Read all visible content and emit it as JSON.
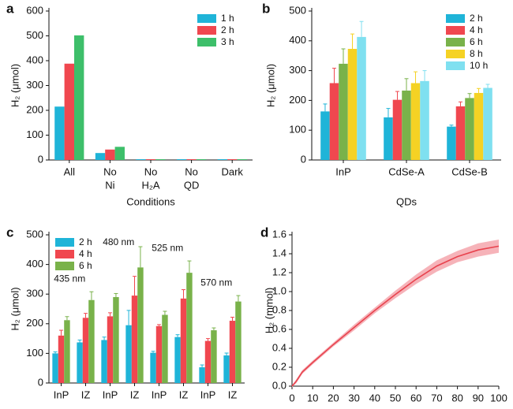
{
  "chart_data": [
    {
      "type": "bar",
      "panel": "a",
      "ylabel": "H₂ (μmol)",
      "xlabel": "Conditions",
      "categories": [
        [
          "All"
        ],
        [
          "No",
          "Ni"
        ],
        [
          "No",
          "H₂A"
        ],
        [
          "No",
          "QD"
        ],
        [
          "Dark"
        ]
      ],
      "series": [
        {
          "name": "1 h",
          "color": "#1fb4d8",
          "values": [
            215,
            28,
            3,
            3,
            3
          ]
        },
        {
          "name": "2 h",
          "color": "#f0474f",
          "values": [
            388,
            42,
            3,
            3,
            3
          ]
        },
        {
          "name": "3 h",
          "color": "#3dbf6a",
          "values": [
            502,
            53,
            3,
            3,
            3
          ]
        }
      ],
      "ylim": [
        0,
        600
      ],
      "yticks": [
        0,
        100,
        200,
        300,
        400,
        500,
        600
      ],
      "legend": "upper right"
    },
    {
      "type": "bar",
      "panel": "b",
      "ylabel": "H₂ (μmol)",
      "xlabel": "QDs",
      "categories": [
        [
          "InP"
        ],
        [
          "CdSe-A"
        ],
        [
          "CdSe-B"
        ]
      ],
      "series": [
        {
          "name": "2 h",
          "color": "#1fb4d8",
          "values": [
            163,
            143,
            112
          ],
          "errors": [
            25,
            30,
            5
          ]
        },
        {
          "name": "4 h",
          "color": "#f0474f",
          "values": [
            258,
            202,
            180
          ],
          "errors": [
            50,
            28,
            15
          ]
        },
        {
          "name": "6 h",
          "color": "#79b24a",
          "values": [
            323,
            233,
            208
          ],
          "errors": [
            50,
            40,
            15
          ]
        },
        {
          "name": "8 h",
          "color": "#f5d224",
          "values": [
            373,
            258,
            225
          ],
          "errors": [
            50,
            38,
            15
          ]
        },
        {
          "name": "10 h",
          "color": "#7fe0f0",
          "values": [
            413,
            265,
            242
          ],
          "errors": [
            52,
            35,
            12
          ]
        }
      ],
      "ylim": [
        0,
        500
      ],
      "yticks": [
        0,
        100,
        200,
        300,
        400,
        500
      ],
      "legend": "upper right"
    },
    {
      "type": "bar",
      "panel": "c",
      "ylabel": "H₂ (μmol)",
      "categories": [
        [
          "InP"
        ],
        [
          "IZ"
        ],
        [
          "InP"
        ],
        [
          "IZ"
        ],
        [
          "InP"
        ],
        [
          "IZ"
        ],
        [
          "InP"
        ],
        [
          "IZ"
        ]
      ],
      "annotations": [
        "435  nm",
        "480  nm",
        "525  nm",
        "570  nm"
      ],
      "series": [
        {
          "name": "2 h",
          "color": "#1fb4d8",
          "values": [
            100,
            137,
            145,
            195,
            102,
            155,
            53,
            93
          ],
          "errors": [
            5,
            8,
            10,
            50,
            5,
            8,
            8,
            8
          ]
        },
        {
          "name": "4 h",
          "color": "#f0474f",
          "values": [
            160,
            220,
            225,
            295,
            192,
            285,
            142,
            210
          ],
          "errors": [
            18,
            15,
            12,
            65,
            5,
            30,
            8,
            12
          ]
        },
        {
          "name": "6 h",
          "color": "#79b24a",
          "values": [
            212,
            280,
            290,
            390,
            230,
            372,
            178,
            275
          ],
          "errors": [
            12,
            28,
            12,
            70,
            12,
            40,
            8,
            20
          ]
        }
      ],
      "ylim": [
        0,
        500
      ],
      "yticks": [
        0,
        100,
        200,
        300,
        400,
        500
      ],
      "legend": "upper left"
    },
    {
      "type": "line",
      "panel": "d",
      "ylabel": "H₂ (mmol)",
      "color": "#e8434e",
      "band_color": "#f6b3b9",
      "x": [
        0,
        2,
        5,
        10,
        20,
        30,
        40,
        50,
        60,
        70,
        80,
        90,
        100
      ],
      "values": [
        0,
        0.05,
        0.15,
        0.25,
        0.44,
        0.62,
        0.8,
        0.97,
        1.13,
        1.27,
        1.37,
        1.44,
        1.48
      ],
      "errors": [
        0.01,
        0.02,
        0.02,
        0.02,
        0.02,
        0.03,
        0.03,
        0.04,
        0.05,
        0.06,
        0.06,
        0.07,
        0.07
      ],
      "xlim": [
        0,
        100
      ],
      "xticks": [
        0,
        10,
        20,
        30,
        40,
        50,
        60,
        70,
        80,
        90,
        100
      ],
      "ylim": [
        0,
        1.6
      ],
      "yticks": [
        {
          "value": 0,
          "label": "0.0"
        },
        0.2,
        0.4,
        0.6,
        0.8,
        {
          "value": 1,
          "label": "1.0"
        },
        1.2,
        1.4,
        1.6
      ]
    }
  ]
}
